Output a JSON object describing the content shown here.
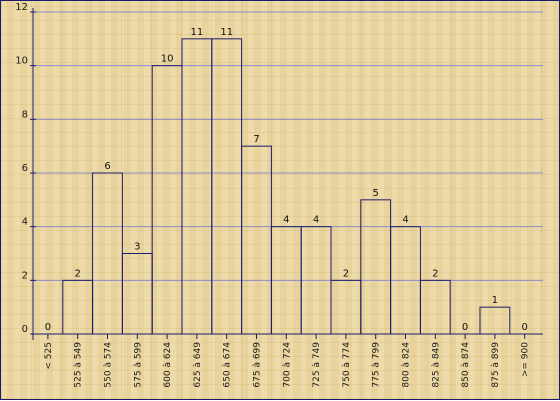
{
  "chart_data": {
    "type": "bar",
    "title": "",
    "xlabel": "",
    "ylabel": "",
    "ylim": [
      0,
      12
    ],
    "yticks": [
      "0",
      "2",
      "4",
      "6",
      "8",
      "10",
      "12"
    ],
    "grid": true,
    "categories": [
      "< 525",
      "525 à 549",
      "550 à 574",
      "575 à 599",
      "600 à 624",
      "625 à 649",
      "650 à 674",
      "675 à 699",
      "700 à 724",
      "725 à 749",
      "750 à 774",
      "775 à 799",
      "800 à 824",
      "825 à 849",
      "850 à 874",
      "875 à 899",
      ">= 900"
    ],
    "values": [
      0,
      2,
      6,
      3,
      10,
      11,
      11,
      7,
      4,
      4,
      2,
      5,
      4,
      2,
      0,
      1,
      0
    ],
    "value_labels": [
      "0",
      "2",
      "6",
      "3",
      "10",
      "11",
      "11",
      "7",
      "4",
      "4",
      "2",
      "5",
      "4",
      "2",
      "0",
      "1",
      "0"
    ],
    "colors": {
      "bar_stroke": "#1c1c6c",
      "grid": "#8c8cc8",
      "axis": "#1c1c6c",
      "background": "#e9d39c"
    }
  }
}
